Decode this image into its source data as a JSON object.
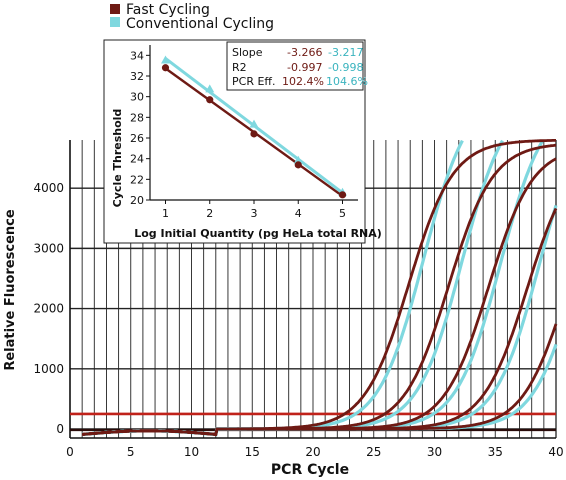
{
  "legend": {
    "items": [
      {
        "label": "Fast Cycling",
        "color": "#6e1a14"
      },
      {
        "label": "Conventional Cycling",
        "color": "#7fd8df"
      }
    ]
  },
  "chart_data": [
    {
      "type": "line",
      "xlabel": "PCR Cycle",
      "ylabel": "Relative Fluorescence",
      "xlim": [
        0,
        40
      ],
      "ylim": [
        -150,
        4800
      ],
      "xticks": [
        "0",
        "5",
        "10",
        "15",
        "20",
        "25",
        "30",
        "35",
        "40"
      ],
      "yticks": [
        "0",
        "1000",
        "2000",
        "3000",
        "4000"
      ],
      "grid": true,
      "threshold": 250,
      "threshold_color": "#c0221a",
      "series": [
        {
          "group": "Fast Cycling",
          "ct": 22.6,
          "plateau": 4800
        },
        {
          "group": "Fast Cycling",
          "ct": 25.9,
          "plateau": 4750
        },
        {
          "group": "Fast Cycling",
          "ct": 29.2,
          "plateau": 4700
        },
        {
          "group": "Fast Cycling",
          "ct": 32.4,
          "plateau": 4650
        },
        {
          "group": "Fast Cycling",
          "ct": 35.7,
          "plateau": 4600
        },
        {
          "group": "Conventional Cycling",
          "ct": 23.5,
          "plateau": 5600
        },
        {
          "group": "Conventional Cycling",
          "ct": 26.7,
          "plateau": 5550
        },
        {
          "group": "Conventional Cycling",
          "ct": 29.9,
          "plateau": 5500
        },
        {
          "group": "Conventional Cycling",
          "ct": 33.1,
          "plateau": 5450
        },
        {
          "group": "Conventional Cycling",
          "ct": 36.4,
          "plateau": 5400
        }
      ]
    },
    {
      "type": "scatter",
      "xlabel": "Log Initial Quantity (pg HeLa total RNA)",
      "ylabel": "Cycle Threshold",
      "xlim": [
        0.65,
        5.35
      ],
      "ylim": [
        20,
        35
      ],
      "xticks": [
        "1",
        "2",
        "3",
        "4",
        "5"
      ],
      "yticks": [
        "20",
        "22",
        "24",
        "26",
        "28",
        "30",
        "32",
        "34"
      ],
      "series": [
        {
          "name": "Fast Cycling",
          "x": [
            1,
            2,
            3,
            4,
            5
          ],
          "y": [
            32.8,
            29.7,
            26.4,
            23.4,
            20.5
          ]
        },
        {
          "name": "Conventional Cycling",
          "x": [
            1,
            2,
            3,
            4,
            5
          ],
          "y": [
            33.5,
            30.7,
            27.3,
            23.8,
            20.7
          ]
        }
      ],
      "stats": {
        "labels": [
          "Slope",
          "R2",
          "PCR Eff."
        ],
        "fast": [
          "-3.266",
          "-0.997",
          "102.4%"
        ],
        "conventional": [
          "-3.217",
          "-0.998",
          "104.6%"
        ]
      }
    }
  ]
}
